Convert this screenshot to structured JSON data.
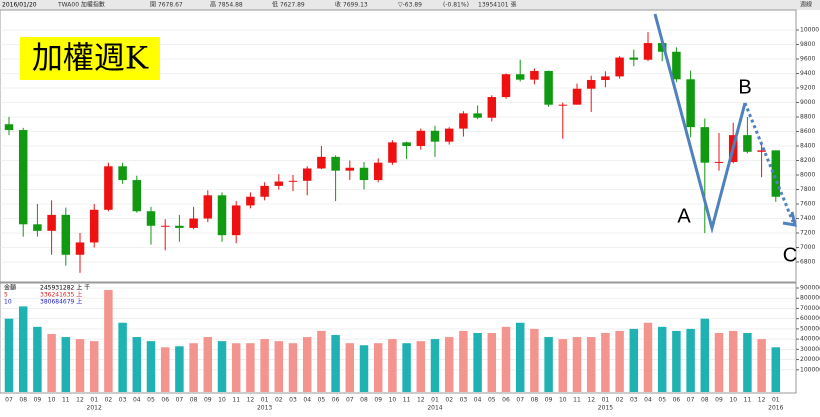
{
  "chart_data": {
    "type": "candlestick",
    "title": "加權週K",
    "header": [
      "2016/01/20",
      "TWA00 加權指數",
      "開 7678.67",
      "高 7854.88",
      "低 7627.89",
      "收 7699.13",
      "▽-63.89",
      "(-0.81%)",
      "13954101 張",
      "週線"
    ],
    "categories": [
      "07",
      "08",
      "09",
      "10",
      "11",
      "12",
      "01",
      "02",
      "03",
      "04",
      "05",
      "06",
      "07",
      "08",
      "09",
      "10",
      "11",
      "12",
      "01",
      "02",
      "03",
      "04",
      "05",
      "06",
      "07",
      "08",
      "09",
      "10",
      "11",
      "12",
      "01",
      "02",
      "03",
      "04",
      "05",
      "06",
      "07",
      "08",
      "09",
      "10",
      "11",
      "12",
      "01",
      "02",
      "03",
      "04",
      "05",
      "06",
      "07",
      "08",
      "09",
      "10",
      "11",
      "12",
      "01"
    ],
    "year_labels": [
      "2012",
      "2013",
      "2014",
      "2015",
      "2016"
    ],
    "open": [
      8700,
      8620,
      7320,
      7230,
      7450,
      6900,
      7070,
      7520,
      8120,
      7930,
      7500,
      7300,
      7300,
      7270,
      7400,
      7720,
      7170,
      7580,
      7700,
      7850,
      7910,
      7920,
      8090,
      8250,
      8060,
      8100,
      7930,
      8170,
      8450,
      8400,
      8610,
      8460,
      8640,
      8850,
      8790,
      9075,
      9390,
      9315,
      9435,
      8970,
      8970,
      9190,
      9310,
      9360,
      9620,
      9590,
      9820,
      9700,
      9320,
      8660,
      8170,
      8180,
      8550,
      8320,
      8340
    ],
    "high": [
      8800,
      8650,
      7600,
      7650,
      7550,
      7200,
      7600,
      8170,
      8170,
      7990,
      7560,
      7390,
      7450,
      7560,
      7790,
      7760,
      7640,
      7760,
      7900,
      8010,
      8000,
      8120,
      8400,
      8270,
      8200,
      8180,
      8230,
      8480,
      8460,
      8640,
      8680,
      8660,
      8880,
      8960,
      9100,
      9400,
      9590,
      9470,
      9440,
      9000,
      9260,
      9370,
      9430,
      9640,
      9730,
      9970,
      9880,
      9760,
      9440,
      8780,
      8580,
      8720,
      8800,
      8460,
      8340
    ],
    "low": [
      8550,
      7150,
      7150,
      6900,
      6750,
      6650,
      7000,
      7500,
      7880,
      7480,
      7040,
      6960,
      7080,
      7250,
      7350,
      7080,
      7060,
      7540,
      7650,
      7800,
      7780,
      7720,
      8080,
      7640,
      7930,
      7800,
      7900,
      8140,
      8220,
      8350,
      8250,
      8420,
      8530,
      8770,
      8740,
      9050,
      9290,
      9250,
      8940,
      8500,
      8970,
      8870,
      9210,
      9330,
      9500,
      9570,
      9570,
      9280,
      8520,
      7200,
      8060,
      8160,
      8300,
      7970,
      7630
    ],
    "close": [
      8620,
      7320,
      7230,
      7450,
      6900,
      7070,
      7520,
      8120,
      7930,
      7500,
      7300,
      7300,
      7270,
      7400,
      7720,
      7170,
      7580,
      7700,
      7850,
      7910,
      7920,
      8090,
      8250,
      8060,
      8100,
      7930,
      8170,
      8450,
      8400,
      8610,
      8460,
      8640,
      8850,
      8790,
      9075,
      9390,
      9315,
      9435,
      8970,
      8970,
      9190,
      9310,
      9360,
      9620,
      9590,
      9820,
      9700,
      9320,
      8660,
      8170,
      8180,
      8550,
      8320,
      8340,
      7700
    ],
    "up_color": "#ee1111",
    "down_color": "#119911",
    "ylim": [
      6600,
      10200
    ],
    "yticks": [
      6800,
      7000,
      7200,
      7400,
      7600,
      7800,
      8000,
      8200,
      8400,
      8600,
      8800,
      9000,
      9200,
      9400,
      9600,
      9800,
      10000
    ],
    "grid": true,
    "volume": {
      "values": [
        600000,
        720000,
        520000,
        450000,
        420000,
        400000,
        380000,
        880000,
        560000,
        420000,
        380000,
        320000,
        330000,
        360000,
        420000,
        380000,
        360000,
        360000,
        400000,
        380000,
        360000,
        420000,
        480000,
        440000,
        360000,
        340000,
        360000,
        400000,
        360000,
        380000,
        400000,
        420000,
        480000,
        460000,
        460000,
        520000,
        560000,
        500000,
        420000,
        400000,
        420000,
        420000,
        460000,
        480000,
        500000,
        560000,
        520000,
        480000,
        500000,
        600000,
        460000,
        480000,
        460000,
        400000,
        320000
      ],
      "up_color": "#f4948e",
      "down_color": "#20b2b2",
      "ylim": [
        0,
        900000
      ],
      "yticks": [
        100000,
        200000,
        300000,
        400000,
        500000,
        600000,
        700000,
        800000,
        900000
      ],
      "legend": [
        {
          "label": "金額",
          "text": "245931282 上 千",
          "color": "#000000"
        },
        {
          "label": "5",
          "text": "336241635 上",
          "color": "#dd2222"
        },
        {
          "label": "10",
          "text": "380684679 上",
          "color": "#2222cc"
        }
      ]
    },
    "annotations": [
      "A",
      "B",
      "C"
    ]
  }
}
